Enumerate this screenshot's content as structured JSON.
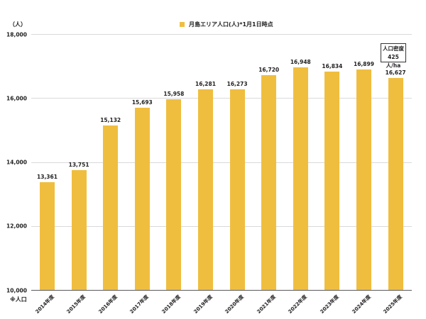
{
  "chart_data": {
    "type": "bar",
    "title": "",
    "legend": [
      "月島エリア人口(人)*1月1日時点"
    ],
    "legend_position": "top",
    "xlabel": "",
    "ylabel": "（人）",
    "ylim": [
      10000,
      18000
    ],
    "yticks": [
      10000,
      12000,
      14000,
      16000,
      18000
    ],
    "ytick_labels": [
      "10,000",
      "12,000",
      "14,000",
      "16,000",
      "18,000"
    ],
    "grid": true,
    "categories": [
      "2014年度",
      "2015年度",
      "2016年度",
      "2017年度",
      "2018年度",
      "2019年度",
      "2020年度",
      "2021年度",
      "2022年度",
      "2023年度",
      "2024年度",
      "2025年度"
    ],
    "series": [
      {
        "name": "月島エリア人口(人)*1月1日時点",
        "color": "#F0BE3F",
        "values": [
          13361,
          13751,
          15132,
          15693,
          15958,
          16281,
          16273,
          16720,
          16948,
          16834,
          16899,
          16627
        ]
      }
    ],
    "value_labels": [
      "13,361",
      "13,751",
      "15,132",
      "15,693",
      "15,958",
      "16,281",
      "16,273",
      "16,720",
      "16,948",
      "16,834",
      "16,899",
      "16,627"
    ],
    "annotations": [
      "人口密度 425人/ha",
      "※人口"
    ]
  },
  "header": {
    "unit_label": "（人）",
    "legend_label": "月島エリア人口(人)*1月1日時点",
    "legend_color": "#F0BE3F"
  },
  "density_box": {
    "line1": "人口密度",
    "line2": "425人/ha"
  },
  "footnote": "※人口",
  "colors": {
    "bar": "#F0BE3F",
    "grid": "#D9D9D9",
    "axis": "#595959"
  }
}
